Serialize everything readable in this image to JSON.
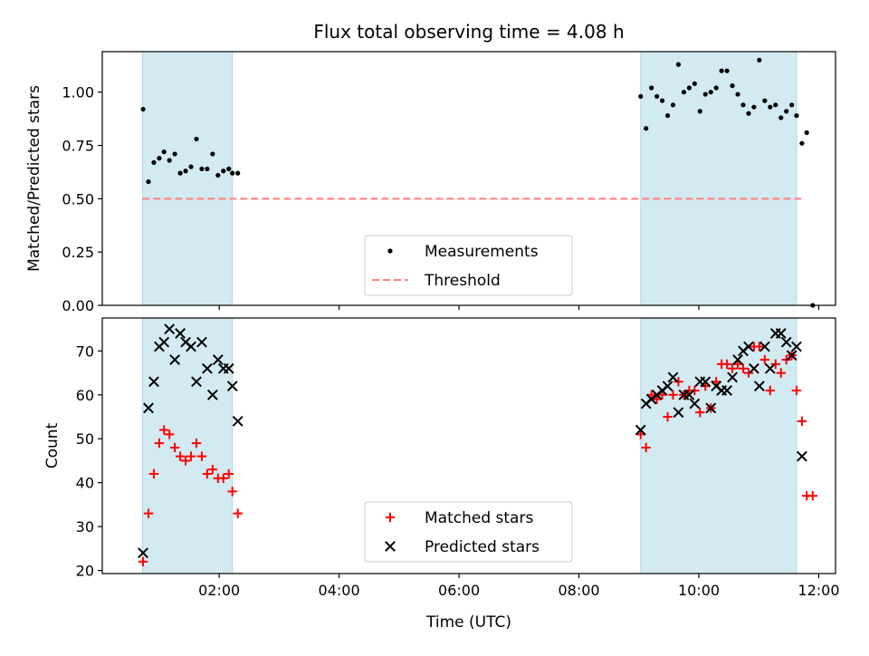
{
  "chart_data": {
    "title": "Flux total observing time = 4.08 h",
    "xlabel": "Time (UTC)",
    "x_unit": "hours UTC",
    "x_ticks": [
      {
        "value": 2,
        "label": "02:00"
      },
      {
        "value": 4,
        "label": "04:00"
      },
      {
        "value": 6,
        "label": "06:00"
      },
      {
        "value": 8,
        "label": "08:00"
      },
      {
        "value": 10,
        "label": "10:00"
      },
      {
        "value": 12,
        "label": "12:00"
      }
    ],
    "xlim": [
      0.05,
      12.28
    ],
    "shaded_intervals": [
      [
        0.72,
        2.22
      ],
      [
        9.03,
        11.63
      ]
    ],
    "shade_color": "#add8e6",
    "panels": [
      {
        "type": "scatter",
        "ylabel": "Matched/Predicted stars",
        "ylim": [
          0,
          1.19
        ],
        "y_ticks": [
          {
            "value": 0,
            "label": "0.00"
          },
          {
            "value": 0.25,
            "label": "0.25"
          },
          {
            "value": 0.5,
            "label": "0.50"
          },
          {
            "value": 0.75,
            "label": "0.75"
          },
          {
            "value": 1.0,
            "label": "1.00"
          }
        ],
        "legend": {
          "placement": "lower-center",
          "entries": [
            "Measurements",
            "Threshold"
          ]
        },
        "threshold": {
          "name": "Threshold",
          "y": 0.5,
          "x_range": [
            0.72,
            11.73
          ],
          "color": "#ff7f7f"
        },
        "series": [
          {
            "name": "Measurements",
            "marker": "dot",
            "color": "#000000",
            "points": [
              [
                0.73,
                0.92
              ],
              [
                0.82,
                0.58
              ],
              [
                0.91,
                0.67
              ],
              [
                1.0,
                0.69
              ],
              [
                1.08,
                0.72
              ],
              [
                1.17,
                0.68
              ],
              [
                1.26,
                0.71
              ],
              [
                1.35,
                0.62
              ],
              [
                1.44,
                0.63
              ],
              [
                1.53,
                0.65
              ],
              [
                1.62,
                0.78
              ],
              [
                1.71,
                0.64
              ],
              [
                1.8,
                0.64
              ],
              [
                1.89,
                0.71
              ],
              [
                1.98,
                0.61
              ],
              [
                2.07,
                0.63
              ],
              [
                2.16,
                0.64
              ],
              [
                2.22,
                0.62
              ],
              [
                2.31,
                0.62
              ],
              [
                9.03,
                0.98
              ],
              [
                9.12,
                0.83
              ],
              [
                9.21,
                1.02
              ],
              [
                9.3,
                0.98
              ],
              [
                9.39,
                0.96
              ],
              [
                9.48,
                0.89
              ],
              [
                9.57,
                0.94
              ],
              [
                9.66,
                1.13
              ],
              [
                9.75,
                1.0
              ],
              [
                9.84,
                1.02
              ],
              [
                9.93,
                1.04
              ],
              [
                10.02,
                0.91
              ],
              [
                10.11,
                0.99
              ],
              [
                10.2,
                1.0
              ],
              [
                10.29,
                1.02
              ],
              [
                10.38,
                1.1
              ],
              [
                10.47,
                1.1
              ],
              [
                10.56,
                1.03
              ],
              [
                10.65,
                0.99
              ],
              [
                10.74,
                0.94
              ],
              [
                10.83,
                0.9
              ],
              [
                10.92,
                0.93
              ],
              [
                11.01,
                1.15
              ],
              [
                11.1,
                0.96
              ],
              [
                11.19,
                0.93
              ],
              [
                11.28,
                0.94
              ],
              [
                11.37,
                0.88
              ],
              [
                11.46,
                0.91
              ],
              [
                11.55,
                0.94
              ],
              [
                11.63,
                0.89
              ],
              [
                11.72,
                0.76
              ],
              [
                11.8,
                0.81
              ],
              [
                11.9,
                0.0
              ]
            ]
          }
        ]
      },
      {
        "type": "scatter",
        "ylabel": "Count",
        "ylim": [
          19.3,
          77.5
        ],
        "y_ticks": [
          {
            "value": 20,
            "label": "20"
          },
          {
            "value": 30,
            "label": "30"
          },
          {
            "value": 40,
            "label": "40"
          },
          {
            "value": 50,
            "label": "50"
          },
          {
            "value": 60,
            "label": "60"
          },
          {
            "value": 70,
            "label": "70"
          }
        ],
        "legend": {
          "placement": "lower-center",
          "entries": [
            "Matched stars",
            "Predicted stars"
          ]
        },
        "series": [
          {
            "name": "Matched stars",
            "marker": "plus",
            "color": "#ff0000",
            "points": [
              [
                0.73,
                22
              ],
              [
                0.82,
                33
              ],
              [
                0.91,
                42
              ],
              [
                1.0,
                49
              ],
              [
                1.08,
                52
              ],
              [
                1.17,
                51
              ],
              [
                1.26,
                48
              ],
              [
                1.35,
                46
              ],
              [
                1.44,
                45
              ],
              [
                1.53,
                46
              ],
              [
                1.62,
                49
              ],
              [
                1.71,
                46
              ],
              [
                1.8,
                42
              ],
              [
                1.89,
                43
              ],
              [
                1.98,
                41
              ],
              [
                2.07,
                41
              ],
              [
                2.16,
                42
              ],
              [
                2.22,
                38
              ],
              [
                2.31,
                33
              ],
              [
                9.03,
                51
              ],
              [
                9.12,
                48
              ],
              [
                9.21,
                60
              ],
              [
                9.3,
                59
              ],
              [
                9.39,
                60
              ],
              [
                9.48,
                55
              ],
              [
                9.57,
                60
              ],
              [
                9.66,
                63
              ],
              [
                9.75,
                60
              ],
              [
                9.84,
                61
              ],
              [
                9.93,
                61
              ],
              [
                10.02,
                56
              ],
              [
                10.11,
                62
              ],
              [
                10.2,
                57
              ],
              [
                10.29,
                63
              ],
              [
                10.38,
                67
              ],
              [
                10.47,
                67
              ],
              [
                10.56,
                66
              ],
              [
                10.65,
                67
              ],
              [
                10.74,
                66
              ],
              [
                10.83,
                65
              ],
              [
                10.92,
                71
              ],
              [
                11.01,
                71
              ],
              [
                11.1,
                68
              ],
              [
                11.19,
                61
              ],
              [
                11.28,
                67
              ],
              [
                11.37,
                65
              ],
              [
                11.46,
                68
              ],
              [
                11.55,
                69
              ],
              [
                11.63,
                61
              ],
              [
                11.72,
                54
              ],
              [
                11.8,
                37
              ],
              [
                11.9,
                37
              ]
            ]
          },
          {
            "name": "Predicted stars",
            "marker": "x",
            "color": "#000000",
            "points": [
              [
                0.73,
                24
              ],
              [
                0.82,
                57
              ],
              [
                0.91,
                63
              ],
              [
                1.0,
                71
              ],
              [
                1.08,
                72
              ],
              [
                1.17,
                75
              ],
              [
                1.26,
                68
              ],
              [
                1.35,
                74
              ],
              [
                1.44,
                72
              ],
              [
                1.53,
                71
              ],
              [
                1.62,
                63
              ],
              [
                1.71,
                72
              ],
              [
                1.8,
                66
              ],
              [
                1.89,
                60
              ],
              [
                1.98,
                68
              ],
              [
                2.07,
                66
              ],
              [
                2.16,
                66
              ],
              [
                2.22,
                62
              ],
              [
                2.31,
                54
              ],
              [
                9.03,
                52
              ],
              [
                9.12,
                58
              ],
              [
                9.21,
                59
              ],
              [
                9.3,
                60
              ],
              [
                9.39,
                61
              ],
              [
                9.48,
                62
              ],
              [
                9.57,
                64
              ],
              [
                9.66,
                56
              ],
              [
                9.75,
                60
              ],
              [
                9.84,
                60
              ],
              [
                9.93,
                58
              ],
              [
                10.02,
                63
              ],
              [
                10.11,
                63
              ],
              [
                10.2,
                57
              ],
              [
                10.29,
                62
              ],
              [
                10.38,
                61
              ],
              [
                10.47,
                61
              ],
              [
                10.56,
                64
              ],
              [
                10.65,
                68
              ],
              [
                10.74,
                70
              ],
              [
                10.83,
                71
              ],
              [
                10.92,
                66
              ],
              [
                11.01,
                62
              ],
              [
                11.1,
                71
              ],
              [
                11.19,
                66
              ],
              [
                11.28,
                74
              ],
              [
                11.37,
                74
              ],
              [
                11.46,
                72
              ],
              [
                11.55,
                69
              ],
              [
                11.63,
                71
              ],
              [
                11.72,
                46
              ]
            ]
          }
        ]
      }
    ]
  }
}
